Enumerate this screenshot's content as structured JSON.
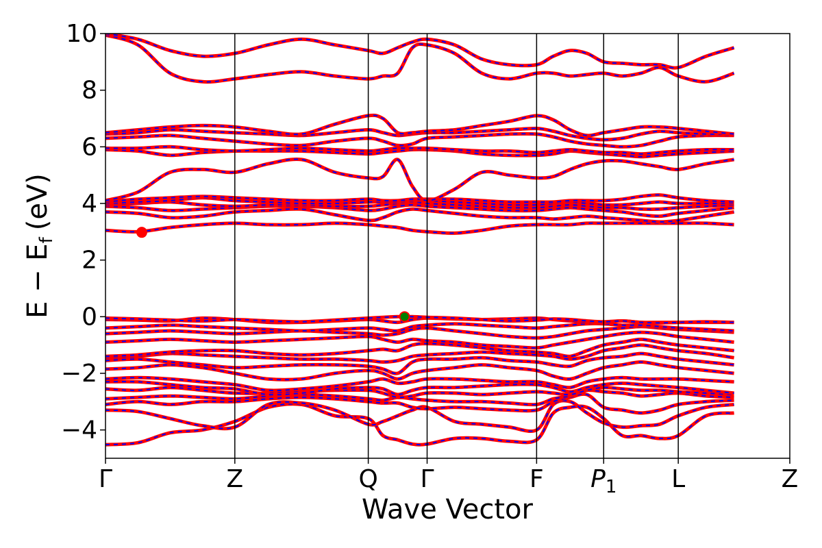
{
  "chart_data": {
    "type": "line",
    "title": "",
    "xlabel": "Wave Vector",
    "ylabel_parts": {
      "main": "E − E",
      "sub": "f",
      "unit": "(eV)"
    },
    "ylim": [
      -5,
      10
    ],
    "yticks": [
      -4,
      -2,
      0,
      2,
      4,
      6,
      8,
      10
    ],
    "ytick_labels": [
      "−4",
      "−2",
      "0",
      "2",
      "4",
      "6",
      "8",
      "10"
    ],
    "xlim": [
      0,
      1
    ],
    "kpoints": [
      {
        "label": "Γ",
        "pos": 0.0
      },
      {
        "label": "Z",
        "pos": 0.189
      },
      {
        "label": "Q",
        "pos": 0.384
      },
      {
        "label": "Γ",
        "pos": 0.47
      },
      {
        "label": "F",
        "pos": 0.63
      },
      {
        "label": "P",
        "sub": "1",
        "pos": 0.728
      },
      {
        "label": "L",
        "pos": 0.837
      },
      {
        "label": "Z",
        "pos": 1.0
      }
    ],
    "line_colors": {
      "solid": "#ff0000",
      "dashed": "#0000ff"
    },
    "markers": [
      {
        "name": "cbm",
        "x": 0.053,
        "y": 2.98,
        "color": "#ff0000"
      },
      {
        "name": "vbm",
        "x": 0.437,
        "y": 0.0,
        "color": "#008000",
        "edge": "#ff0000"
      }
    ],
    "bands": [
      {
        "name": "v1",
        "y": [
          -4.52,
          -4.45,
          -4.1,
          -4.0,
          -3.7,
          -3.2,
          -3.1,
          -3.5,
          -3.6,
          -4.2,
          -4.35,
          -4.5,
          -4.5,
          -4.3,
          -4.3,
          -4.4,
          -4.35,
          -3.4,
          -3.2,
          -3.2,
          -3.6,
          -4.2,
          -4.2,
          -4.3,
          -4.2,
          -3.5,
          -3.4
        ]
      },
      {
        "name": "v2",
        "y": [
          -3.3,
          -3.35,
          -3.6,
          -3.85,
          -3.9,
          -3.1,
          -3.05,
          -3.3,
          -3.8,
          -3.7,
          -3.5,
          -3.3,
          -3.2,
          -3.7,
          -3.8,
          -3.9,
          -4.0,
          -3.1,
          -3.0,
          -3.4,
          -3.75,
          -3.9,
          -3.85,
          -3.8,
          -3.5,
          -3.2,
          -3.1
        ]
      },
      {
        "name": "v3",
        "y": [
          -3.1,
          -3.0,
          -3.1,
          -3.0,
          -3.0,
          -2.9,
          -2.85,
          -2.9,
          -3.0,
          -3.05,
          -3.05,
          -3.2,
          -3.25,
          -3.2,
          -3.25,
          -3.3,
          -3.3,
          -3.0,
          -2.85,
          -2.75,
          -3.2,
          -3.3,
          -3.4,
          -3.3,
          -3.1,
          -3.0,
          -2.95
        ]
      },
      {
        "name": "v4",
        "y": [
          -2.9,
          -2.85,
          -2.8,
          -2.85,
          -2.9,
          -2.8,
          -2.75,
          -2.8,
          -2.9,
          -2.95,
          -2.85,
          -2.9,
          -2.95,
          -3.0,
          -3.0,
          -3.05,
          -3.1,
          -2.9,
          -2.8,
          -2.6,
          -2.65,
          -2.7,
          -2.8,
          -2.75,
          -2.7,
          -2.8,
          -2.85
        ]
      },
      {
        "name": "v5",
        "y": [
          -2.55,
          -2.6,
          -2.5,
          -2.6,
          -2.7,
          -2.7,
          -2.65,
          -2.6,
          -2.6,
          -2.7,
          -2.85,
          -2.8,
          -2.7,
          -2.7,
          -2.75,
          -2.7,
          -2.65,
          -2.7,
          -2.75,
          -2.6,
          -2.5,
          -2.55,
          -2.6,
          -2.6,
          -2.65,
          -2.7,
          -2.75
        ]
      },
      {
        "name": "v6",
        "y": [
          -2.3,
          -2.3,
          -2.4,
          -2.5,
          -2.55,
          -2.75,
          -2.7,
          -2.55,
          -2.5,
          -2.55,
          -2.75,
          -2.6,
          -2.5,
          -2.5,
          -2.45,
          -2.4,
          -2.4,
          -2.5,
          -2.65,
          -2.5,
          -2.4,
          -2.35,
          -2.4,
          -2.45,
          -2.5,
          -2.6,
          -2.7
        ]
      },
      {
        "name": "v7",
        "y": [
          -2.2,
          -2.15,
          -2.2,
          -2.3,
          -2.4,
          -2.6,
          -2.55,
          -2.45,
          -2.3,
          -2.2,
          -2.35,
          -2.3,
          -2.2,
          -2.2,
          -2.25,
          -2.3,
          -2.3,
          -2.4,
          -2.5,
          -2.3,
          -2.2,
          -2.15,
          -2.2,
          -2.2,
          -2.2,
          -2.25,
          -2.3
        ]
      },
      {
        "name": "v8",
        "y": [
          -1.85,
          -1.8,
          -1.7,
          -1.8,
          -2.0,
          -2.2,
          -2.2,
          -2.0,
          -1.9,
          -2.0,
          -2.2,
          -2.0,
          -1.9,
          -1.8,
          -1.7,
          -1.8,
          -1.9,
          -2.1,
          -2.2,
          -2.0,
          -1.8,
          -1.7,
          -1.6,
          -1.7,
          -1.8,
          -1.9,
          -2.0
        ]
      },
      {
        "name": "v9",
        "y": [
          -1.55,
          -1.5,
          -1.6,
          -1.7,
          -1.8,
          -1.75,
          -1.7,
          -1.7,
          -1.75,
          -1.85,
          -2.0,
          -1.6,
          -1.5,
          -1.5,
          -1.45,
          -1.55,
          -1.6,
          -1.7,
          -1.75,
          -1.55,
          -1.45,
          -1.4,
          -1.3,
          -1.4,
          -1.5,
          -1.6,
          -1.7
        ]
      },
      {
        "name": "v10",
        "y": [
          -1.45,
          -1.4,
          -1.3,
          -1.35,
          -1.4,
          -1.45,
          -1.5,
          -1.5,
          -1.55,
          -1.6,
          -1.55,
          -1.4,
          -1.35,
          -1.3,
          -1.25,
          -1.3,
          -1.35,
          -1.4,
          -1.5,
          -1.4,
          -1.2,
          -1.1,
          -1.0,
          -1.1,
          -1.2,
          -1.3,
          -1.45
        ]
      },
      {
        "name": "v11",
        "y": [
          -1.4,
          -1.35,
          -1.25,
          -1.2,
          -1.2,
          -1.3,
          -1.35,
          -1.3,
          -1.2,
          -1.15,
          -1.2,
          -1.0,
          -0.95,
          -1.0,
          -1.1,
          -1.2,
          -1.25,
          -1.3,
          -1.4,
          -1.2,
          -1.0,
          -0.9,
          -0.8,
          -0.9,
          -1.0,
          -1.1,
          -1.2
        ]
      },
      {
        "name": "v12",
        "y": [
          -0.9,
          -0.85,
          -0.8,
          -0.85,
          -0.9,
          -0.85,
          -0.8,
          -0.75,
          -0.7,
          -0.8,
          -0.9,
          -0.8,
          -0.85,
          -0.9,
          -1.0,
          -1.05,
          -1.1,
          -1.0,
          -0.9,
          -0.8,
          -0.7,
          -0.6,
          -0.55,
          -0.6,
          -0.7,
          -0.8,
          -0.9
        ]
      },
      {
        "name": "v13",
        "y": [
          -0.6,
          -0.55,
          -0.5,
          -0.55,
          -0.6,
          -0.55,
          -0.5,
          -0.55,
          -0.6,
          -0.65,
          -0.6,
          -0.45,
          -0.4,
          -0.5,
          -0.6,
          -0.7,
          -0.75,
          -0.7,
          -0.6,
          -0.5,
          -0.45,
          -0.4,
          -0.35,
          -0.4,
          -0.45,
          -0.5,
          -0.55
        ]
      },
      {
        "name": "v14",
        "y": [
          -0.4,
          -0.35,
          -0.3,
          -0.35,
          -0.4,
          -0.45,
          -0.5,
          -0.45,
          -0.4,
          -0.45,
          -0.5,
          -0.35,
          -0.3,
          -0.25,
          -0.3,
          -0.35,
          -0.4,
          -0.35,
          -0.3,
          -0.25,
          -0.25,
          -0.3,
          -0.3,
          -0.35,
          -0.4,
          -0.45,
          -0.5
        ]
      },
      {
        "name": "v15",
        "y": [
          -0.1,
          -0.12,
          -0.15,
          -0.05,
          -0.1,
          -0.2,
          -0.2,
          -0.15,
          -0.1,
          -0.15,
          -0.2,
          -0.1,
          -0.05,
          -0.08,
          -0.1,
          -0.08,
          -0.05,
          -0.1,
          -0.15,
          -0.2,
          -0.2,
          -0.15,
          -0.2,
          -0.2,
          -0.2,
          -0.2,
          -0.2
        ]
      },
      {
        "name": "vtop",
        "y": [
          -0.05,
          -0.08,
          -0.12,
          -0.15,
          -0.1,
          -0.15,
          -0.18,
          -0.12,
          -0.05,
          -0.02,
          0.0,
          0.0,
          -0.02,
          -0.05,
          -0.1,
          -0.15,
          -0.12,
          -0.08,
          -0.1,
          -0.15,
          -0.18,
          -0.15,
          -0.2,
          -0.22,
          -0.2,
          -0.18,
          -0.2
        ]
      },
      {
        "name": "c1",
        "y": [
          3.05,
          3.0,
          3.15,
          3.25,
          3.3,
          3.25,
          3.25,
          3.3,
          3.25,
          3.2,
          3.15,
          3.05,
          3.0,
          2.95,
          3.05,
          3.2,
          3.25,
          3.25,
          3.25,
          3.3,
          3.3,
          3.3,
          3.3,
          3.3,
          3.3,
          3.3,
          3.25
        ]
      },
      {
        "name": "c2",
        "y": [
          3.7,
          3.65,
          3.5,
          3.55,
          3.7,
          3.75,
          3.8,
          3.6,
          3.4,
          3.5,
          3.7,
          3.8,
          3.75,
          3.65,
          3.55,
          3.5,
          3.5,
          3.45,
          3.5,
          3.55,
          3.5,
          3.45,
          3.4,
          3.35,
          3.4,
          3.55,
          3.7
        ]
      },
      {
        "name": "c3",
        "y": [
          3.9,
          3.85,
          3.75,
          3.8,
          3.85,
          3.9,
          3.9,
          3.85,
          3.75,
          3.8,
          3.9,
          3.95,
          3.9,
          3.85,
          3.8,
          3.75,
          3.75,
          3.8,
          3.85,
          3.8,
          3.75,
          3.7,
          3.6,
          3.55,
          3.65,
          3.75,
          3.85
        ]
      },
      {
        "name": "c4",
        "y": [
          3.95,
          4.0,
          4.05,
          3.95,
          3.9,
          3.95,
          3.95,
          3.9,
          3.9,
          3.95,
          4.0,
          4.05,
          4.0,
          3.95,
          3.9,
          3.85,
          3.85,
          3.9,
          3.95,
          3.9,
          3.85,
          3.85,
          3.8,
          3.8,
          3.85,
          3.9,
          3.95
        ]
      },
      {
        "name": "c5",
        "y": [
          4.0,
          4.05,
          4.1,
          4.2,
          4.1,
          4.05,
          4.0,
          4.0,
          4.05,
          4.05,
          4.05,
          4.1,
          4.1,
          4.05,
          4.0,
          3.95,
          3.95,
          4.0,
          4.05,
          4.0,
          3.95,
          3.95,
          4.0,
          4.05,
          4.0,
          4.0,
          4.0
        ]
      },
      {
        "name": "c6",
        "y": [
          4.05,
          4.15,
          4.2,
          4.25,
          4.2,
          4.15,
          4.1,
          4.1,
          4.15,
          4.1,
          4.1,
          4.15,
          4.15,
          4.15,
          4.1,
          4.05,
          4.05,
          4.05,
          4.1,
          4.1,
          4.1,
          4.15,
          4.25,
          4.3,
          4.2,
          4.1,
          4.05
        ]
      },
      {
        "name": "c7",
        "y": [
          4.1,
          4.4,
          5.1,
          5.2,
          5.1,
          5.4,
          5.55,
          5.1,
          4.9,
          4.95,
          5.55,
          4.6,
          4.1,
          4.5,
          5.1,
          5.0,
          4.9,
          4.95,
          5.2,
          5.4,
          5.5,
          5.5,
          5.4,
          5.3,
          5.2,
          5.4,
          5.55
        ]
      },
      {
        "name": "c8",
        "y": [
          5.9,
          5.85,
          5.7,
          5.8,
          5.85,
          5.85,
          5.85,
          5.8,
          5.75,
          5.8,
          5.85,
          5.9,
          5.9,
          5.85,
          5.75,
          5.7,
          5.7,
          5.75,
          5.85,
          5.8,
          5.75,
          5.7,
          5.65,
          5.7,
          5.75,
          5.8,
          5.85
        ]
      },
      {
        "name": "c9",
        "y": [
          5.95,
          5.95,
          6.0,
          5.9,
          5.85,
          5.9,
          5.95,
          5.9,
          5.85,
          5.9,
          5.95,
          5.95,
          5.95,
          5.9,
          5.85,
          5.85,
          5.8,
          5.85,
          5.9,
          5.85,
          5.8,
          5.8,
          5.75,
          5.8,
          5.85,
          5.9,
          5.9
        ]
      },
      {
        "name": "c10",
        "y": [
          6.3,
          6.35,
          6.4,
          6.3,
          6.2,
          6.1,
          6.05,
          6.2,
          6.3,
          6.2,
          6.05,
          6.1,
          6.3,
          6.35,
          6.4,
          6.45,
          6.45,
          6.35,
          6.2,
          6.1,
          6.05,
          6.0,
          6.05,
          6.2,
          6.35,
          6.4,
          6.4
        ]
      },
      {
        "name": "c11",
        "y": [
          6.45,
          6.5,
          6.6,
          6.55,
          6.5,
          6.45,
          6.4,
          6.5,
          6.6,
          6.5,
          6.4,
          6.45,
          6.5,
          6.5,
          6.55,
          6.6,
          6.65,
          6.55,
          6.4,
          6.3,
          6.25,
          6.3,
          6.45,
          6.55,
          6.5,
          6.45,
          6.45
        ]
      },
      {
        "name": "c12",
        "y": [
          6.5,
          6.6,
          6.7,
          6.75,
          6.7,
          6.55,
          6.45,
          6.8,
          7.1,
          7.0,
          6.5,
          6.5,
          6.55,
          6.6,
          6.75,
          6.9,
          7.1,
          6.95,
          6.6,
          6.4,
          6.5,
          6.6,
          6.7,
          6.7,
          6.65,
          6.55,
          6.45
        ]
      },
      {
        "name": "c13",
        "y": [
          9.95,
          9.6,
          8.6,
          8.3,
          8.4,
          8.55,
          8.65,
          8.5,
          8.4,
          8.5,
          8.6,
          9.5,
          9.6,
          9.3,
          8.6,
          8.4,
          8.6,
          8.6,
          8.5,
          8.55,
          8.6,
          8.5,
          8.6,
          8.8,
          8.5,
          8.3,
          8.6
        ]
      },
      {
        "name": "c14",
        "y": [
          10.0,
          9.8,
          9.4,
          9.2,
          9.3,
          9.6,
          9.8,
          9.6,
          9.4,
          9.3,
          9.5,
          9.7,
          9.8,
          9.6,
          9.1,
          8.9,
          8.9,
          9.2,
          9.4,
          9.3,
          9.0,
          8.95,
          8.9,
          8.9,
          8.8,
          9.2,
          9.5
        ]
      }
    ]
  }
}
